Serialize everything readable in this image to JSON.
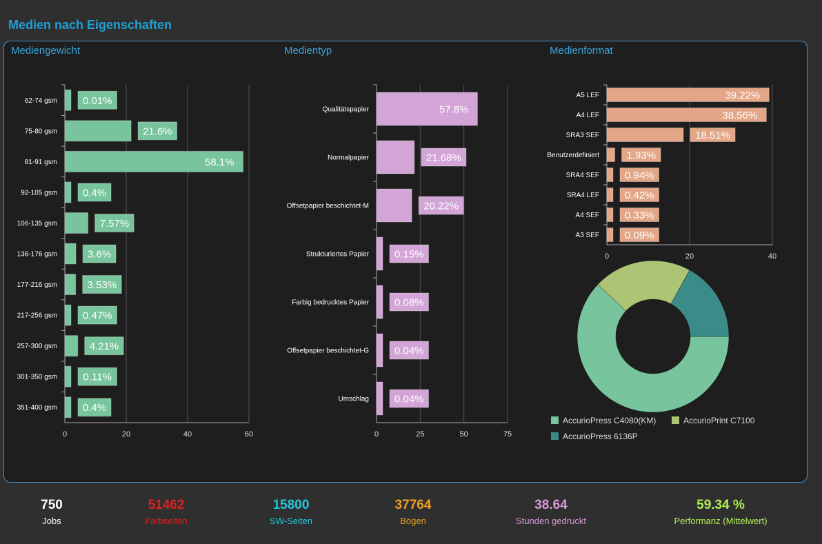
{
  "page": {
    "title": "Medien nach Eigenschaften"
  },
  "sections": {
    "weight": "Mediengewicht",
    "type": "Medientyp",
    "format": "Medienformat"
  },
  "colors": {
    "weight": "#78c49d",
    "type": "#d3a4d6",
    "format": "#e3a686",
    "c4080": "#78c49d",
    "c7100": "#adc474",
    "6136p": "#3b8b89"
  },
  "chart_data": [
    {
      "id": "weight",
      "type": "bar",
      "orientation": "horizontal",
      "title": "Mediengewicht",
      "categories": [
        "62-74 gsm",
        "75-80 gsm",
        "81-91 gsm",
        "92-105 gsm",
        "106-135 gsm",
        "136-176 gsm",
        "177-216 gsm",
        "217-256 gsm",
        "257-300 gsm",
        "301-350 gsm",
        "351-400 gsm"
      ],
      "values": [
        0.01,
        21.6,
        58.1,
        0.4,
        7.57,
        3.6,
        3.53,
        0.47,
        4.21,
        0.11,
        0.4
      ],
      "labels": [
        "0.01%",
        "21.6%",
        "58.1%",
        "0.4%",
        "7.57%",
        "3.6%",
        "3.53%",
        "0.47%",
        "4.21%",
        "0.11%",
        "0.4%"
      ],
      "xlim": [
        0,
        60
      ],
      "ticks": [
        0,
        20,
        40,
        60
      ]
    },
    {
      "id": "type",
      "type": "bar",
      "orientation": "horizontal",
      "title": "Medientyp",
      "categories": [
        "Qualitätspapier",
        "Normalpapier",
        "Offsetpapier beschichtet-M",
        "Strukturiertes Papier",
        "Farbig bedrucktes Papier",
        "Offsetpapier beschichtet-G",
        "Umschlag"
      ],
      "values": [
        57.8,
        21.68,
        20.22,
        0.15,
        0.08,
        0.04,
        0.04
      ],
      "labels": [
        "57.8%",
        "21.68%",
        "20.22%",
        "0.15%",
        "0.08%",
        "0.04%",
        "0.04%"
      ],
      "xlim": [
        0,
        75
      ],
      "ticks": [
        0,
        25,
        50,
        75
      ]
    },
    {
      "id": "format",
      "type": "bar",
      "orientation": "horizontal",
      "title": "Medienformat",
      "categories": [
        "A5 LEF",
        "A4 LEF",
        "SRA3 SEF",
        "Benutzerdefiniert",
        "SRA4 SEF",
        "SRA4 LEF",
        "A4 SEF",
        "A3 SEF"
      ],
      "values": [
        39.22,
        38.56,
        18.51,
        1.93,
        0.94,
        0.42,
        0.33,
        0.09
      ],
      "labels": [
        "39.22%",
        "38.56%",
        "18.51%",
        "1.93%",
        "0.94%",
        "0.42%",
        "0.33%",
        "0.09%"
      ],
      "xlim": [
        0,
        40
      ],
      "ticks": [
        0,
        20,
        40
      ]
    },
    {
      "id": "printers",
      "type": "pie",
      "donut": true,
      "categories": [
        "AccurioPress C4080(KM)",
        "AccurioPrint C7100",
        "AccurioPress 6136P"
      ],
      "values": [
        62,
        21,
        17
      ]
    }
  ],
  "legend": [
    {
      "label": "AccurioPress C4080(KM)",
      "color": "#78c49d"
    },
    {
      "label": "AccurioPrint C7100",
      "color": "#adc474"
    },
    {
      "label": "AccurioPress 6136P",
      "color": "#3b8b89"
    }
  ],
  "kpis": [
    {
      "value": "750",
      "label": "Jobs",
      "valueColor": "#ffffff",
      "labelColor": "#ffffff"
    },
    {
      "value": "51462",
      "label": "Farbseiten",
      "valueColor": "#e02020",
      "labelColor": "#e02020"
    },
    {
      "value": "15800",
      "label": "SW-Seiten",
      "valueColor": "#22c8dc",
      "labelColor": "#22c8dc"
    },
    {
      "value": "37764",
      "label": "Bögen",
      "valueColor": "#f0a020",
      "labelColor": "#f0a020"
    },
    {
      "value": "38.64",
      "label": "Stunden gedruckt",
      "valueColor": "#d89ad8",
      "labelColor": "#d89ad8"
    },
    {
      "value": "59.34 %",
      "label": "Performanz (Mittelwert)",
      "valueColor": "#b2ee58",
      "labelColor": "#b2ee58"
    }
  ]
}
